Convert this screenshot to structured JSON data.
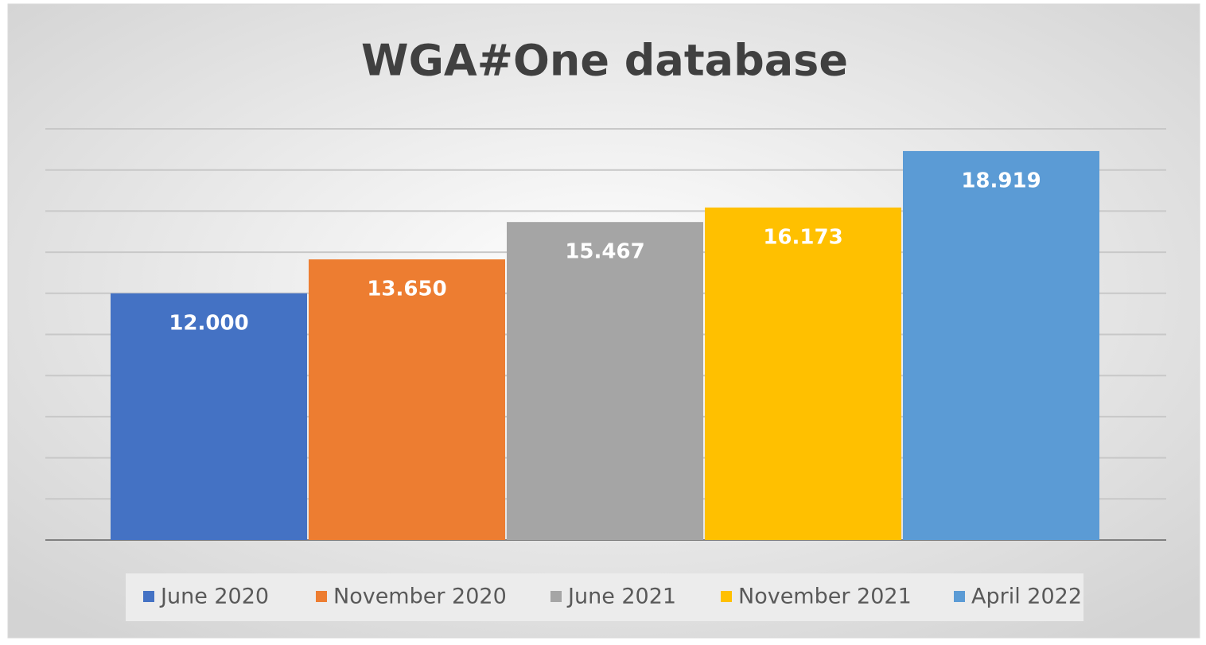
{
  "chart_data": {
    "type": "bar",
    "title": "WGA#One database",
    "series": [
      {
        "name": "June 2020",
        "color": "#4472c4",
        "values": [
          12000
        ],
        "value_labels": [
          "12.000"
        ]
      },
      {
        "name": "November 2020",
        "color": "#ed7d31",
        "values": [
          13650
        ],
        "value_labels": [
          "13.650"
        ]
      },
      {
        "name": "June 2021",
        "color": "#a5a5a5",
        "values": [
          15467
        ],
        "value_labels": [
          "15.467"
        ]
      },
      {
        "name": "November 2021",
        "color": "#ffc000",
        "values": [
          16173
        ],
        "value_labels": [
          "16.173"
        ]
      },
      {
        "name": "April 2022",
        "color": "#5b9bd5",
        "values": [
          18919
        ],
        "value_labels": [
          "18.919"
        ]
      }
    ],
    "ylim": [
      0,
      20000
    ],
    "yticks": [
      0,
      2000,
      4000,
      6000,
      8000,
      10000,
      12000,
      14000,
      16000,
      18000,
      20000
    ],
    "grid": true,
    "legend": "bottom"
  }
}
